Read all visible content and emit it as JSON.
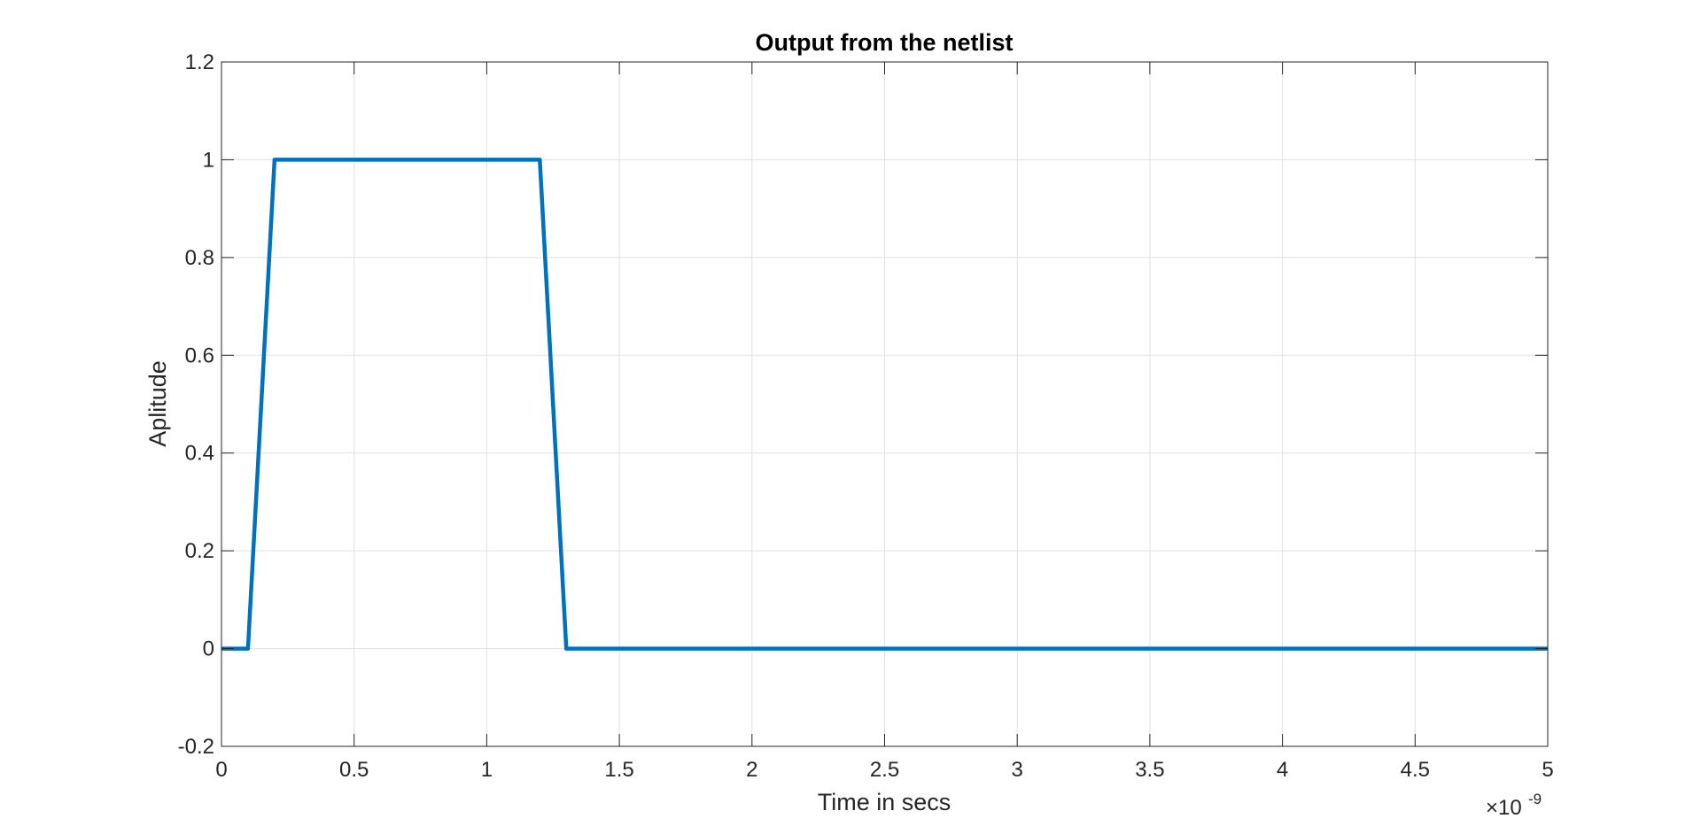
{
  "chart_data": {
    "type": "line",
    "title": "Output from the netlist",
    "xlabel": "Time in secs",
    "ylabel": "Aplitude",
    "x_exponent_base": "×10",
    "x_exponent_power": "-9",
    "xlim": [
      0,
      5
    ],
    "ylim": [
      -0.2,
      1.2
    ],
    "x_ticks": [
      0,
      0.5,
      1,
      1.5,
      2,
      2.5,
      3,
      3.5,
      4,
      4.5,
      5
    ],
    "x_tick_labels": [
      "0",
      "0.5",
      "1",
      "1.5",
      "2",
      "2.5",
      "3",
      "3.5",
      "4",
      "4.5",
      "5"
    ],
    "y_ticks": [
      -0.2,
      0,
      0.2,
      0.4,
      0.6,
      0.8,
      1,
      1.2
    ],
    "y_tick_labels": [
      "-0.2",
      "0",
      "0.2",
      "0.4",
      "0.6",
      "0.8",
      "1",
      "1.2"
    ],
    "grid": true,
    "series": [
      {
        "color": "#0072BD",
        "x": [
          0,
          0.1,
          0.2,
          1.2,
          1.3,
          5
        ],
        "y": [
          0,
          0,
          1,
          1,
          0,
          0
        ]
      }
    ]
  }
}
